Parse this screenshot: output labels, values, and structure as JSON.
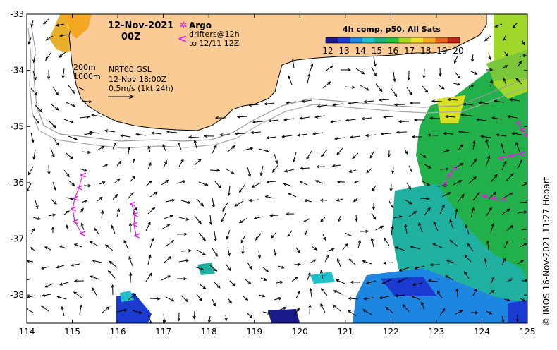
{
  "title": {
    "date": "12-Nov-2021",
    "hour": "00Z"
  },
  "legend_argo": {
    "argo_label": "Argo",
    "drifter_label": "drifters@12h",
    "drifter_to": "to 12/11 12Z"
  },
  "depth_info": {
    "contour_a": "200m",
    "contour_b": "1000m",
    "product": "NRT00 GSL",
    "valid": "12-Nov 18:00Z",
    "scale": "0.5m/s (1kt 24h)"
  },
  "colorbar": {
    "title": "4h comp, p50, All Sats",
    "ticks": [
      "12",
      "13",
      "14",
      "15",
      "16",
      "17",
      "18",
      "19",
      "20"
    ],
    "colors": [
      "#1a1a8a",
      "#1b3bd0",
      "#1d86e0",
      "#1fc0c8",
      "#1fb07a",
      "#22c23a",
      "#a8d81f",
      "#f0e02a",
      "#f4a822",
      "#e8641c",
      "#c02515"
    ]
  },
  "axes": {
    "x_ticks": [
      "114",
      "115",
      "116",
      "117",
      "118",
      "119",
      "120",
      "121",
      "122",
      "123",
      "124",
      "125"
    ],
    "y_ticks": [
      "-33",
      "-34",
      "-35",
      "-36",
      "-37",
      "-38"
    ],
    "x_range": [
      114,
      125
    ],
    "y_range": [
      -38.5,
      -33
    ]
  },
  "credit": "© IMOS 16-Nov-2021 11:27 Hobart",
  "map_colors": {
    "land": "#fbcb96",
    "coast": "#000000",
    "isobath": "#999999",
    "argo": "#e020e0",
    "arrow": "#000000"
  }
}
